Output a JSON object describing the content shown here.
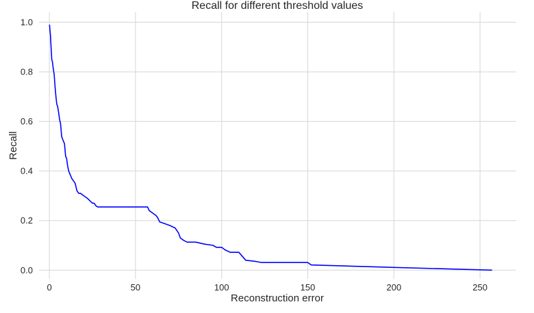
{
  "chart_data": {
    "type": "line",
    "title": "Recall for different threshold values",
    "xlabel": "Reconstruction error",
    "ylabel": "Recall",
    "xlim": [
      -6,
      271
    ],
    "ylim": [
      -0.035,
      1.04
    ],
    "xticks": [
      0,
      50,
      100,
      150,
      200,
      250
    ],
    "yticks": [
      0.0,
      0.2,
      0.4,
      0.6,
      0.8,
      1.0
    ],
    "xtick_labels": [
      "0",
      "50",
      "100",
      "150",
      "200",
      "250"
    ],
    "ytick_labels": [
      "0.0",
      "0.2",
      "0.4",
      "0.6",
      "0.8",
      "1.0"
    ],
    "grid": true,
    "series": [
      {
        "color": "#0000ff",
        "x": [
          0.1,
          0.6,
          1.0,
          1.4,
          1.8,
          2.3,
          2.8,
          3.3,
          3.8,
          4.3,
          4.8,
          5.3,
          5.9,
          6.5,
          7.1,
          7.6,
          8.2,
          8.8,
          9.4,
          10.0,
          10.6,
          11.2,
          11.8,
          12.4,
          13.0,
          14.0,
          15.0,
          16.0,
          17.0,
          18.0,
          20.0,
          22.0,
          25.0,
          26.0,
          27.0,
          28.0,
          30.0,
          40.0,
          50.0,
          57.0,
          58.0,
          60.0,
          62.0,
          63.0,
          64.0,
          66.0,
          70.0,
          73.0,
          75.0,
          76.0,
          78.0,
          80.0,
          85.0,
          90.0,
          95.0,
          97.0,
          100.0,
          102.0,
          105.0,
          110.0,
          114.0,
          120.0,
          123.0,
          130.0,
          150.0,
          152.0,
          200.0,
          257.0
        ],
        "y": [
          0.99,
          0.95,
          0.9,
          0.85,
          0.84,
          0.81,
          0.79,
          0.74,
          0.7,
          0.67,
          0.66,
          0.64,
          0.61,
          0.59,
          0.54,
          0.53,
          0.52,
          0.51,
          0.46,
          0.45,
          0.42,
          0.4,
          0.39,
          0.38,
          0.37,
          0.36,
          0.35,
          0.32,
          0.31,
          0.31,
          0.3,
          0.29,
          0.27,
          0.27,
          0.26,
          0.255,
          0.255,
          0.255,
          0.255,
          0.255,
          0.24,
          0.23,
          0.22,
          0.21,
          0.195,
          0.19,
          0.18,
          0.17,
          0.15,
          0.13,
          0.12,
          0.113,
          0.113,
          0.105,
          0.1,
          0.092,
          0.092,
          0.082,
          0.072,
          0.072,
          0.04,
          0.035,
          0.031,
          0.031,
          0.031,
          0.021,
          0.011,
          0.0
        ]
      }
    ]
  }
}
